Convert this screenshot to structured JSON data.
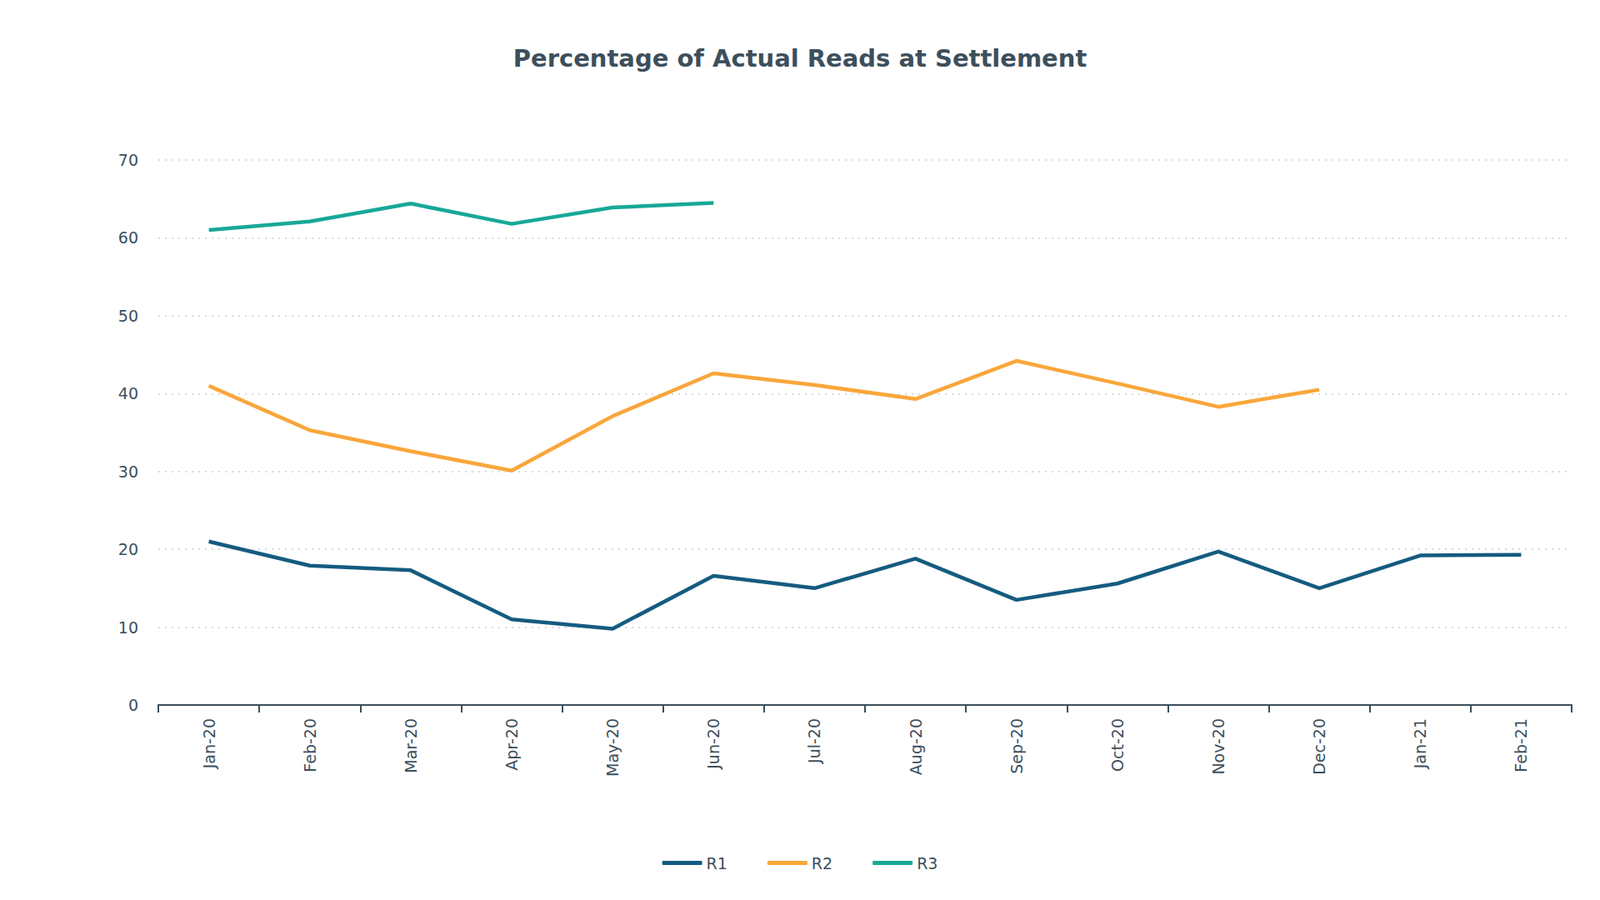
{
  "chart_data": {
    "type": "line",
    "title": "Percentage of Actual Reads at Settlement",
    "categories": [
      "Jan-20",
      "Feb-20",
      "Mar-20",
      "Apr-20",
      "May-20",
      "Jun-20",
      "Jul-20",
      "Aug-20",
      "Sep-20",
      "Oct-20",
      "Nov-20",
      "Dec-20",
      "Jan-21",
      "Feb-21"
    ],
    "series": [
      {
        "name": "R1",
        "color": "#155b80",
        "values": [
          21.0,
          17.9,
          17.3,
          11.0,
          9.8,
          16.6,
          15.0,
          18.8,
          13.5,
          15.6,
          19.7,
          15.0,
          19.2,
          19.3
        ]
      },
      {
        "name": "R2",
        "color": "#f9a63a",
        "values": [
          41.0,
          35.3,
          32.6,
          30.1,
          37.1,
          42.6,
          41.1,
          39.3,
          44.2,
          41.3,
          38.3,
          40.5,
          null,
          null
        ]
      },
      {
        "name": "R3",
        "color": "#17a898",
        "values": [
          61.0,
          62.1,
          64.4,
          61.8,
          63.9,
          64.5,
          null,
          null,
          null,
          null,
          null,
          null,
          null,
          null
        ]
      }
    ],
    "ylim": [
      0,
      70
    ],
    "yticks": [
      0,
      10,
      20,
      30,
      40,
      50,
      60,
      70
    ],
    "grid": true,
    "legend": "bottom"
  }
}
